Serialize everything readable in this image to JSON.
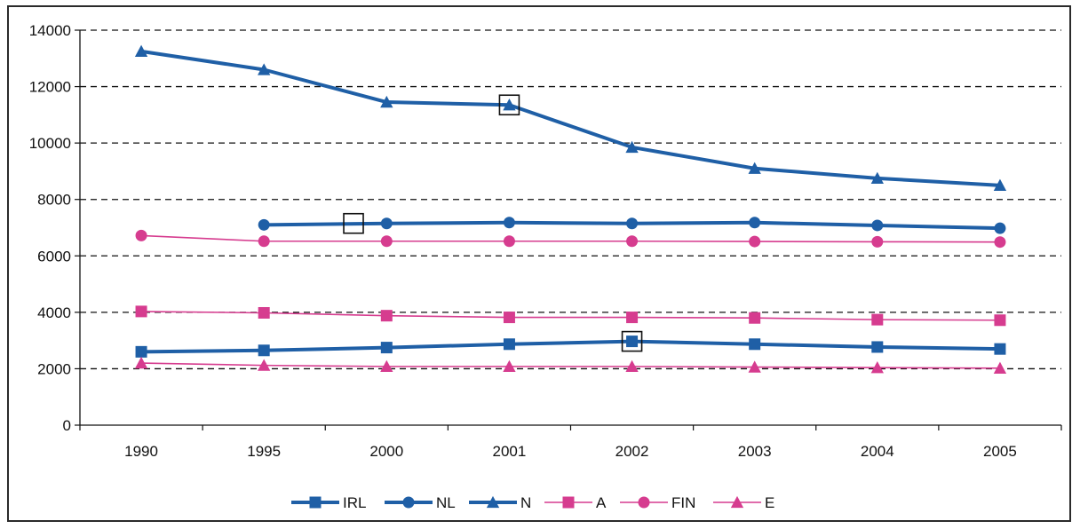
{
  "chart_data": {
    "type": "line",
    "title": "",
    "xlabel": "",
    "ylabel": "",
    "categories": [
      "1990",
      "1995",
      "2000",
      "2001",
      "2002",
      "2003",
      "2004",
      "2005"
    ],
    "ylim": [
      0,
      14000
    ],
    "yticks": [
      0,
      2000,
      4000,
      6000,
      8000,
      10000,
      12000,
      14000
    ],
    "grid": true,
    "legend_position": "bottom",
    "series": [
      {
        "name": "IRL",
        "color": "#1f5fa6",
        "marker": "square",
        "weight": "bold",
        "values": [
          2600,
          2650,
          2750,
          2870,
          2970,
          2870,
          2770,
          2700
        ]
      },
      {
        "name": "NL",
        "color": "#1f5fa6",
        "marker": "circle",
        "weight": "bold",
        "values": [
          null,
          7100,
          7150,
          7180,
          7150,
          7180,
          7080,
          6980
        ]
      },
      {
        "name": "N",
        "color": "#1f5fa6",
        "marker": "triangle",
        "weight": "bold",
        "values": [
          13250,
          12600,
          11450,
          11350,
          9850,
          9100,
          8750,
          8500
        ]
      },
      {
        "name": "A",
        "color": "#d63c8f",
        "marker": "square",
        "weight": "thin",
        "values": [
          4030,
          3980,
          3880,
          3820,
          3820,
          3800,
          3740,
          3720
        ]
      },
      {
        "name": "FIN",
        "color": "#d63c8f",
        "marker": "circle",
        "weight": "thin",
        "values": [
          6720,
          6520,
          6520,
          6520,
          6520,
          6510,
          6500,
          6490
        ]
      },
      {
        "name": "E",
        "color": "#d63c8f",
        "marker": "triangle",
        "weight": "thin",
        "values": [
          2200,
          2120,
          2080,
          2080,
          2080,
          2060,
          2040,
          2020
        ]
      }
    ],
    "annotations": [
      {
        "type": "hollow-square",
        "category": "2000",
        "category_offset": -0.27,
        "value": 7150
      },
      {
        "type": "hollow-square",
        "category": "2001",
        "category_offset": 0,
        "value": 11350
      },
      {
        "type": "hollow-square",
        "category": "2002",
        "category_offset": 0,
        "value": 2970
      }
    ]
  }
}
